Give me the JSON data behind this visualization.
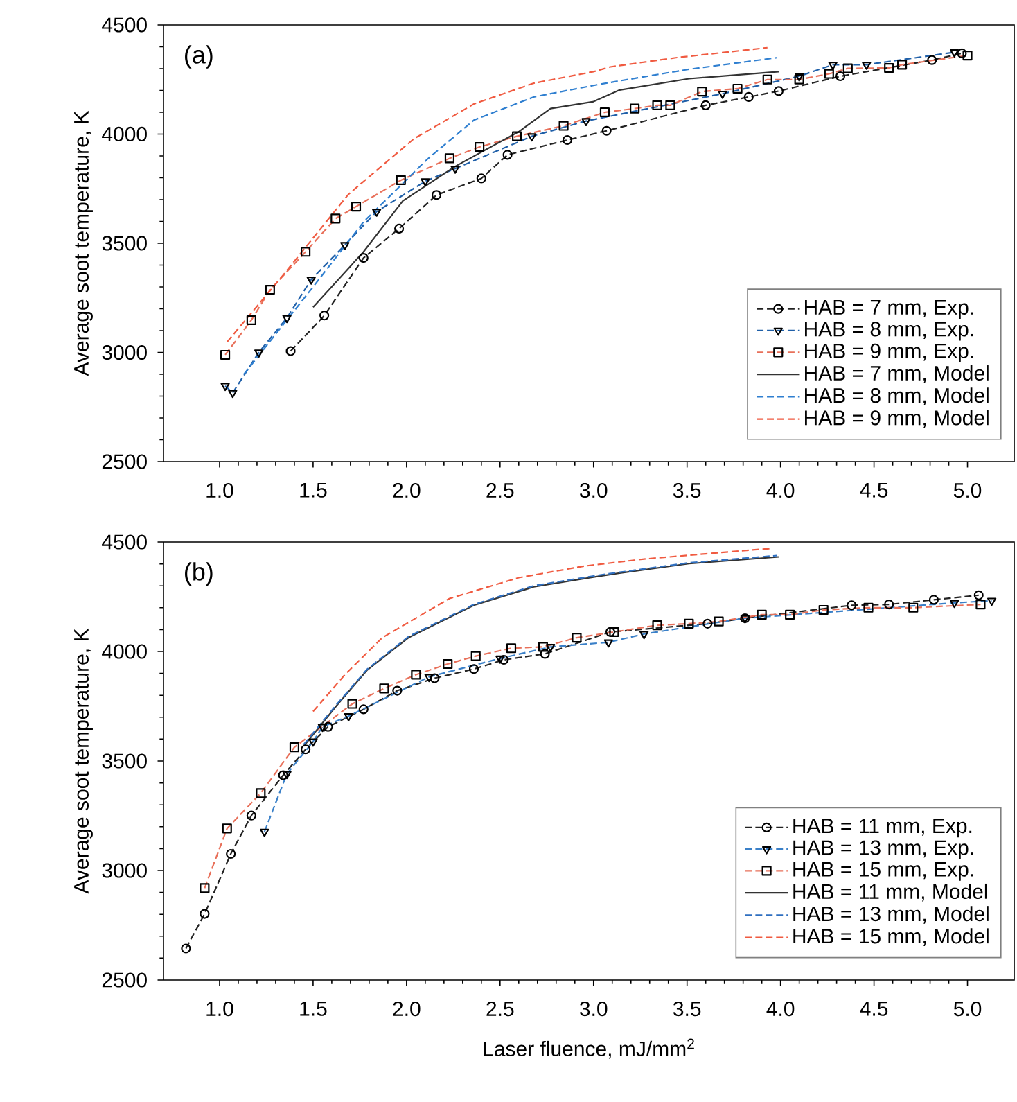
{
  "chart_data": [
    {
      "type": "line",
      "annotations": [
        "(a)"
      ],
      "ylabel": "Average soot temperature, K",
      "xlim": [
        0.7,
        5.25
      ],
      "ylim": [
        2500,
        4500
      ],
      "xticks": [
        {
          "value": 1,
          "label": "1.0"
        },
        {
          "value": 1.5,
          "label": "1.5"
        },
        {
          "value": 2,
          "label": "2.0"
        },
        {
          "value": 2.5,
          "label": "2.5"
        },
        {
          "value": 3,
          "label": "3.0"
        },
        {
          "value": 3.5,
          "label": "3.5"
        },
        {
          "value": 4,
          "label": "4.0"
        },
        {
          "value": 4.5,
          "label": "4.5"
        },
        {
          "value": 5,
          "label": "5.0"
        }
      ],
      "yticks": [
        2500,
        3000,
        3500,
        4000,
        4500
      ],
      "legend": "bottom right",
      "series": [
        {
          "name": "HAB = 7 mm, Exp.",
          "color": "#222222",
          "marker": "circle",
          "line_style": "dashed",
          "x": [
            1.38,
            1.56,
            1.77,
            1.96,
            2.16,
            2.4,
            2.54,
            2.86,
            3.07,
            3.6,
            3.83,
            3.99,
            4.32,
            4.81,
            4.97
          ],
          "values": [
            3006,
            3169,
            3433,
            3567,
            3721,
            3797,
            3905,
            3973,
            4015,
            4132,
            4170,
            4197,
            4265,
            4339,
            4370
          ]
        },
        {
          "name": "HAB = 8 mm, Exp.",
          "color": "#1f5fa8",
          "marker": "triangle",
          "line_style": "dashed",
          "x": [
            1.03,
            1.07,
            1.21,
            1.36,
            1.49,
            1.67,
            1.84,
            2.1,
            2.26,
            2.67,
            2.96,
            3.69,
            4.1,
            4.28,
            4.46,
            4.93
          ],
          "values": [
            2847,
            2815,
            3000,
            3158,
            3334,
            3492,
            3645,
            3784,
            3842,
            3990,
            4060,
            4185,
            4265,
            4318,
            4318,
            4375
          ]
        },
        {
          "name": "HAB = 9 mm, Exp.",
          "color": "#e8705a",
          "marker": "square",
          "line_style": "dashed",
          "x": [
            1.03,
            1.17,
            1.27,
            1.46,
            1.62,
            1.73,
            1.97,
            2.23,
            2.39,
            2.59,
            2.84,
            3.06,
            3.22,
            3.34,
            3.41,
            3.58,
            3.77,
            3.93,
            4.1,
            4.26,
            4.36,
            4.58,
            4.65,
            5.0
          ],
          "values": [
            2989,
            3148,
            3287,
            3461,
            3613,
            3668,
            3789,
            3889,
            3941,
            3990,
            4038,
            4100,
            4117,
            4132,
            4132,
            4195,
            4208,
            4250,
            4250,
            4276,
            4301,
            4303,
            4318,
            4360
          ]
        },
        {
          "name": "HAB = 7 mm, Model",
          "color": "#333333",
          "marker": "none",
          "line_style": "solid",
          "x": [
            1.5,
            1.77,
            1.98,
            2.26,
            2.6,
            2.77,
            3.0,
            3.14,
            3.51,
            3.99
          ],
          "values": [
            3207,
            3461,
            3694,
            3852,
            4011,
            4117,
            4149,
            4202,
            4254,
            4286
          ]
        },
        {
          "name": "HAB = 8 mm, Model",
          "color": "#2f7fd0",
          "marker": "none",
          "line_style": "dashed",
          "x": [
            1.13,
            1.5,
            1.77,
            2.11,
            2.36,
            2.68,
            3.0,
            3.14,
            3.51,
            3.98
          ],
          "values": [
            2900,
            3300,
            3598,
            3884,
            4064,
            4170,
            4223,
            4244,
            4297,
            4350
          ]
        },
        {
          "name": "HAB = 9 mm, Model",
          "color": "#f05a40",
          "marker": "none",
          "line_style": "dashed",
          "x": [
            1.04,
            1.33,
            1.69,
            2.04,
            2.36,
            2.68,
            3.0,
            3.09,
            3.44,
            3.93
          ],
          "values": [
            3048,
            3344,
            3725,
            3979,
            4138,
            4233,
            4286,
            4308,
            4350,
            4396
          ]
        }
      ]
    },
    {
      "type": "line",
      "annotations": [
        "(b)"
      ],
      "xlabel": "Laser fluence, mJ/mm$^{2}$",
      "ylabel": "Average soot temperature, K",
      "xlim": [
        0.7,
        5.25
      ],
      "ylim": [
        2500,
        4500
      ],
      "xticks": [
        {
          "value": 1,
          "label": "1.0"
        },
        {
          "value": 1.5,
          "label": "1.5"
        },
        {
          "value": 2,
          "label": "2.0"
        },
        {
          "value": 2.5,
          "label": "2.5"
        },
        {
          "value": 3,
          "label": "3.0"
        },
        {
          "value": 3.5,
          "label": "3.5"
        },
        {
          "value": 4,
          "label": "4.0"
        },
        {
          "value": 4.5,
          "label": "4.5"
        },
        {
          "value": 5,
          "label": "5.0"
        }
      ],
      "yticks": [
        2500,
        3000,
        3500,
        4000,
        4500
      ],
      "legend": "bottom right",
      "series": [
        {
          "name": "HAB = 11 mm, Exp.",
          "color": "#222222",
          "marker": "circle",
          "line_style": "dashed",
          "x": [
            0.82,
            0.92,
            1.06,
            1.17,
            1.34,
            1.46,
            1.58,
            1.77,
            1.95,
            2.15,
            2.36,
            2.52,
            2.74,
            3.09,
            3.61,
            3.81,
            4.38,
            4.58,
            4.82,
            5.06
          ],
          "values": [
            2644,
            2802,
            3076,
            3251,
            3435,
            3553,
            3656,
            3736,
            3821,
            3878,
            3920,
            3962,
            3989,
            4089,
            4127,
            4152,
            4211,
            4215,
            4236,
            4257
          ]
        },
        {
          "name": "HAB = 13 mm, Exp.",
          "color": "#3a80c8",
          "marker": "triangle",
          "line_style": "dashed",
          "x": [
            1.24,
            1.36,
            1.5,
            1.55,
            1.69,
            2.12,
            2.5,
            2.77,
            3.08,
            3.27,
            3.81,
            4.93,
            5.13
          ],
          "values": [
            3177,
            3441,
            3589,
            3656,
            3705,
            3884,
            3968,
            4021,
            4042,
            4080,
            4152,
            4222,
            4232
          ]
        },
        {
          "name": "HAB = 15 mm, Exp.",
          "color": "#e8705a",
          "marker": "square",
          "line_style": "dashed",
          "x": [
            0.92,
            1.04,
            1.22,
            1.4,
            1.71,
            1.88,
            2.05,
            2.22,
            2.37,
            2.56,
            2.73,
            2.91,
            3.11,
            3.34,
            3.51,
            3.67,
            3.9,
            4.05,
            4.23,
            4.47,
            4.71,
            5.07
          ],
          "values": [
            2920,
            3192,
            3353,
            3563,
            3761,
            3831,
            3894,
            3943,
            3979,
            4015,
            4021,
            4063,
            4089,
            4120,
            4127,
            4137,
            4168,
            4168,
            4190,
            4200,
            4200,
            4215
          ]
        },
        {
          "name": "HAB = 11 mm, Model",
          "color": "#333333",
          "marker": "none",
          "line_style": "solid",
          "x": [
            1.45,
            1.62,
            1.79,
            2.01,
            2.36,
            2.68,
            3.0,
            3.14,
            3.51,
            3.99
          ],
          "values": [
            3568,
            3747,
            3916,
            4063,
            4211,
            4295,
            4340,
            4358,
            4401,
            4432
          ]
        },
        {
          "name": "HAB = 13 mm, Model",
          "color": "#2f6fc0",
          "marker": "none",
          "line_style": "dashed",
          "x": [
            1.45,
            1.62,
            1.79,
            2.01,
            2.36,
            2.68,
            3.0,
            3.14,
            3.51,
            3.98
          ],
          "values": [
            3575,
            3752,
            3920,
            4068,
            4215,
            4300,
            4345,
            4362,
            4405,
            4438
          ]
        },
        {
          "name": "HAB = 15 mm, Model",
          "color": "#f05a40",
          "marker": "none",
          "line_style": "dashed",
          "x": [
            1.5,
            1.67,
            1.87,
            2.23,
            2.6,
            2.95,
            3.27,
            3.85,
            3.95
          ],
          "values": [
            3726,
            3894,
            4063,
            4242,
            4337,
            4390,
            4422,
            4464,
            4470
          ]
        }
      ]
    }
  ]
}
